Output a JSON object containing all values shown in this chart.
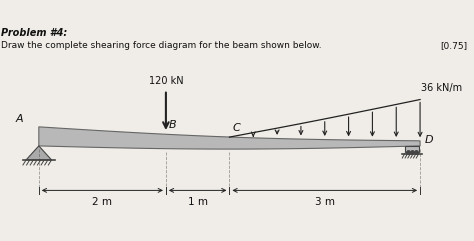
{
  "title": "Problem #4:",
  "subtitle": "Draw the complete shearing force diagram for the beam shown below.",
  "score": "[0.75]",
  "bg_color": "#f0ede8",
  "beam_color": "#b8b8b8",
  "beam_edge_color": "#666666",
  "support_color": "#888888",
  "text_color": "#111111",
  "point_load_label": "120 kN",
  "dist_load_label": "36 kN/m",
  "dim_labels": [
    "2 m",
    "1 m",
    "3 m"
  ],
  "node_labels": [
    "A",
    "B",
    "C",
    "D"
  ],
  "xlim": [
    -0.6,
    6.8
  ],
  "ylim": [
    -1.2,
    2.0
  ]
}
